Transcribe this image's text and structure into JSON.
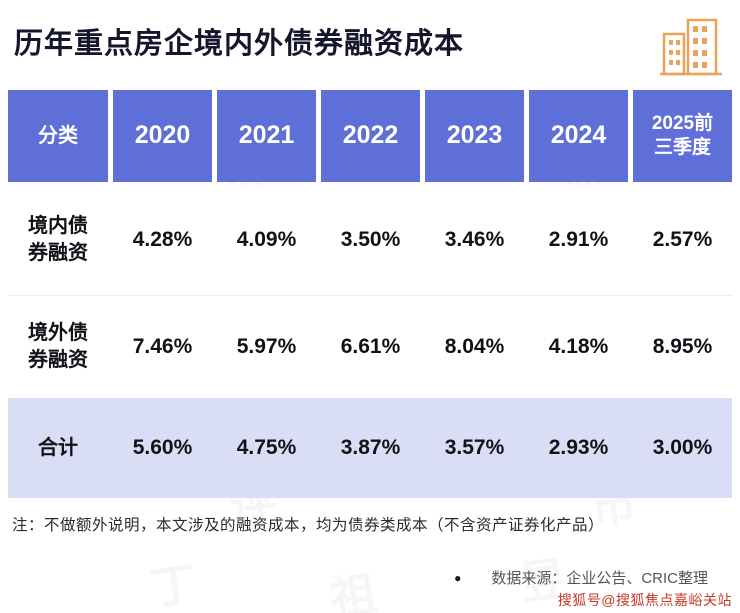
{
  "title": "历年重点房企境内外债券融资成本",
  "table": {
    "headers": [
      "分类",
      "2020",
      "2021",
      "2022",
      "2023",
      "2024",
      "2025前\n三季度"
    ],
    "rows": [
      {
        "label": "境内债\n券融资",
        "values": [
          "4.28%",
          "4.09%",
          "3.50%",
          "3.46%",
          "2.91%",
          "2.57%"
        ],
        "highlight": false
      },
      {
        "label": "境外债\n券融资",
        "values": [
          "7.46%",
          "5.97%",
          "6.61%",
          "8.04%",
          "4.18%",
          "8.95%"
        ],
        "highlight": false
      },
      {
        "label": "合计",
        "values": [
          "5.60%",
          "4.75%",
          "3.87%",
          "3.57%",
          "2.93%",
          "3.00%"
        ],
        "highlight": true
      }
    ]
  },
  "note": "注：不做额外说明，本文涉及的融资成本，均为债券类成本（不含资产证券化产品）",
  "source": "数据来源：企业公告、CRIC整理",
  "bullet": "●",
  "footer": "搜狐号@搜狐焦点嘉峪关站",
  "watermark": "丁祖昱评楼市",
  "colors": {
    "header_bg": "#5e6fd8",
    "highlight_bg": "#d9ddf5",
    "accent_orange": "#eba35c",
    "footer_red": "#c9382a"
  },
  "chart_data": {
    "type": "table",
    "title": "历年重点房企境内外债券融资成本",
    "categories": [
      "2020",
      "2021",
      "2022",
      "2023",
      "2024",
      "2025前三季度"
    ],
    "series": [
      {
        "name": "境内债券融资",
        "values": [
          4.28,
          4.09,
          3.5,
          3.46,
          2.91,
          2.57
        ]
      },
      {
        "name": "境外债券融资",
        "values": [
          7.46,
          5.97,
          6.61,
          8.04,
          4.18,
          8.95
        ]
      },
      {
        "name": "合计",
        "values": [
          5.6,
          4.75,
          3.87,
          3.57,
          2.93,
          3.0
        ]
      }
    ],
    "unit": "%",
    "note": "均为债券类成本（不含资产证券化产品）",
    "source": "企业公告、CRIC整理"
  }
}
